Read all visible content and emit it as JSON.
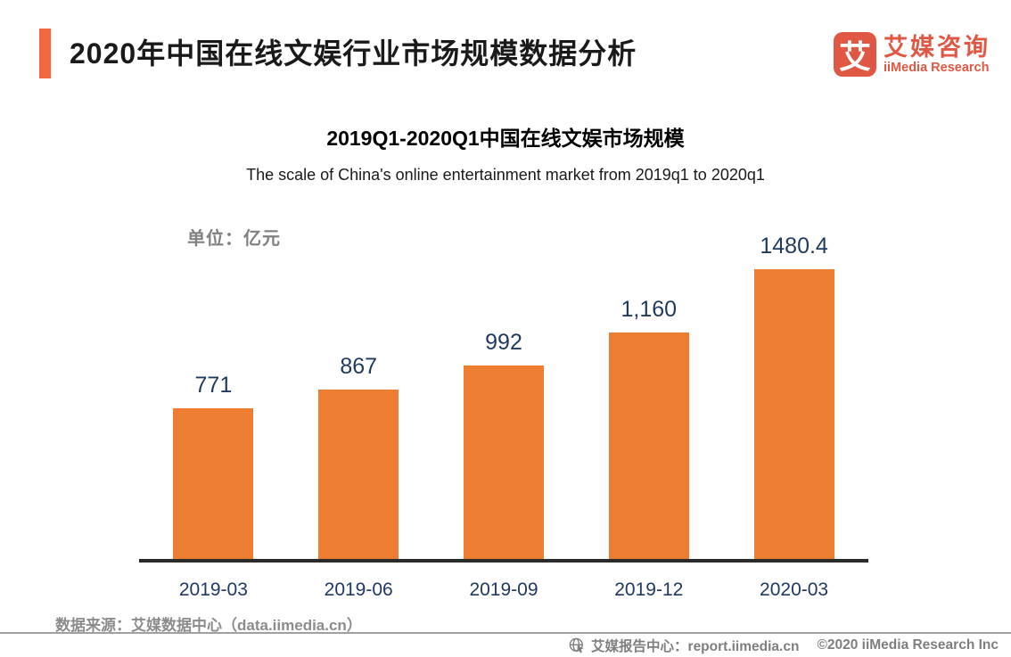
{
  "header": {
    "title": "2020年中国在线文娱行业市场规模数据分析",
    "logo": {
      "glyph": "艾",
      "name_cn": "艾媒咨询",
      "name_en": "iiMedia Research"
    }
  },
  "chart": {
    "title": "2019Q1-2020Q1中国在线文娱市场规模",
    "subtitle": "The scale of China's online entertainment market from 2019q1 to 2020q1",
    "unit_label": "单位：亿元"
  },
  "chart_data": {
    "type": "bar",
    "title": "2019Q1-2020Q1中国在线文娱市场规模",
    "subtitle": "The scale of China's online entertainment market from 2019q1 to 2020q1",
    "categories": [
      "2019-03",
      "2019-06",
      "2019-09",
      "2019-12",
      "2020-03"
    ],
    "values": [
      771,
      867,
      992,
      1160,
      1480.4
    ],
    "value_labels": [
      "771",
      "867",
      "992",
      "1,160",
      "1480.4"
    ],
    "xlabel": "",
    "ylabel": "单位：亿元 (unit: 100 million yuan)",
    "ylim": [
      0,
      1480.4
    ],
    "grid": false,
    "legend": false,
    "bar_color": "#ED7D31",
    "value_label_color": "#1F3A5F",
    "tick_label_color": "#203864"
  },
  "source": {
    "text": "数据来源：艾媒数据中心（data.iimedia.cn）"
  },
  "footer": {
    "site_label": "艾媒报告中心：report.iimedia.cn",
    "copyright": "©2020  iiMedia Research Inc",
    "globe_icon": "globe-with-cursor"
  },
  "colors": {
    "accent_orange": "#F3683C",
    "bar_orange": "#ED7D31",
    "logo_red_orange": "#E05744",
    "navy_text": "#1F3A5F",
    "gray_text": "#808080",
    "axis_dark": "#2B2B2B"
  }
}
